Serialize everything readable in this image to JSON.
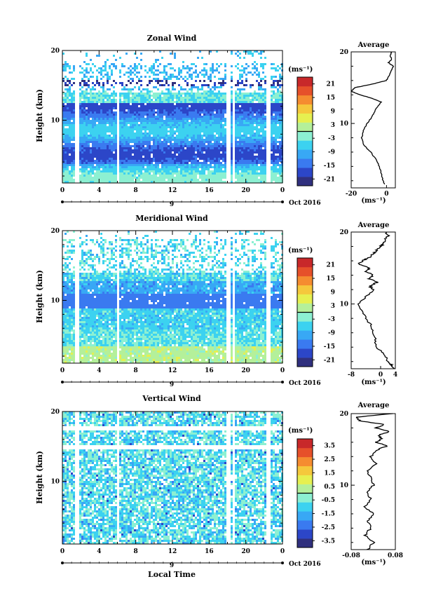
{
  "panels": [
    {
      "title": "Zonal Wind",
      "ylabel": "Height (km)",
      "ylim": [
        1,
        20
      ],
      "yticks": [
        "20",
        "10"
      ],
      "xticks": [
        "0",
        "4",
        "8",
        "12",
        "16",
        "20",
        "0"
      ],
      "date_tick": "9",
      "date_label": "Oct 2016",
      "colorbar": {
        "unit": "(ms⁻¹)",
        "ticks": [
          "21",
          "15",
          "9",
          "3",
          "-3",
          "-9",
          "-15",
          "-21"
        ],
        "range": [
          -24,
          24
        ]
      },
      "average": {
        "title": "Average",
        "xlabel": "(ms⁻¹)",
        "xticks": [
          "-20",
          "0"
        ],
        "xlim": [
          -20,
          5
        ],
        "yticks": [
          "20",
          "10"
        ],
        "profile_heights": [
          1.5,
          2,
          3,
          4,
          5,
          6,
          7,
          8,
          9,
          10,
          11,
          12,
          13,
          13.5,
          14,
          14.5,
          15,
          15.5,
          16,
          16.5,
          17,
          17.5,
          18,
          18.5,
          19,
          19.5,
          20
        ],
        "profile_values": [
          -1,
          -2,
          -3,
          -4,
          -6,
          -9,
          -13,
          -14,
          -13,
          -11,
          -8,
          -6,
          -3,
          -8,
          -15,
          -20,
          -18,
          -8,
          0,
          1,
          2,
          3,
          4,
          1,
          3,
          2,
          3
        ]
      }
    },
    {
      "title": "Meridional Wind",
      "ylabel": "Height (km)",
      "ylim": [
        1,
        20
      ],
      "yticks": [
        "20",
        "10"
      ],
      "xticks": [
        "0",
        "4",
        "8",
        "12",
        "16",
        "20",
        "0"
      ],
      "date_tick": "9",
      "date_label": "Oct 2016",
      "colorbar": {
        "unit": "(ms⁻¹)",
        "ticks": [
          "21",
          "15",
          "9",
          "3",
          "-3",
          "-9",
          "-15",
          "-21"
        ],
        "range": [
          -24,
          24
        ]
      },
      "average": {
        "title": "Average",
        "xlabel": "(ms⁻¹)",
        "xticks": [
          "-8",
          "0",
          "4"
        ],
        "xlim": [
          -8,
          4
        ],
        "yticks": [
          "20",
          "10"
        ],
        "profile_heights": [
          1,
          1.5,
          2,
          3,
          4,
          5,
          6,
          7,
          8,
          9,
          10,
          11,
          12,
          12.5,
          13,
          13.5,
          14,
          14.5,
          15,
          15.5,
          16,
          16.5,
          17,
          17.5,
          18,
          18.5,
          19,
          19.5,
          20
        ],
        "profile_values": [
          3.5,
          3,
          2,
          1,
          -1,
          -1.5,
          -2,
          -2.5,
          -4,
          -5,
          -6,
          -4,
          -2,
          -3,
          -1,
          -3,
          -2,
          -4,
          -3,
          -6,
          -5,
          -3,
          -2,
          -1,
          0,
          1,
          1,
          2,
          1.5
        ]
      }
    },
    {
      "title": "Vertical Wind",
      "ylabel": "Height (km)",
      "ylim": [
        1,
        20
      ],
      "yticks": [
        "20",
        "10"
      ],
      "xticks": [
        "0",
        "4",
        "8",
        "12",
        "16",
        "20",
        "0"
      ],
      "date_tick": "9",
      "date_label": "Oct 2016",
      "xlabel": "Local Time",
      "colorbar": {
        "unit": "(ms⁻¹)",
        "ticks": [
          "3.5",
          "2.5",
          "1.5",
          "0.5",
          "-0.5",
          "-1.5",
          "-2.5",
          "-3.5"
        ],
        "range": [
          -4,
          4
        ]
      },
      "average": {
        "title": "Average",
        "xlabel": "(ms⁻¹)",
        "xticks": [
          "-0.08",
          "0.08"
        ],
        "xlim": [
          -0.08,
          0.08
        ],
        "yticks": [
          "20",
          "10"
        ],
        "profile_heights": [
          1,
          2,
          3,
          4,
          5,
          6,
          7,
          8,
          9,
          10,
          11,
          12,
          13,
          14,
          15,
          15.5,
          16,
          16.5,
          17,
          17.5,
          18,
          18.5,
          19,
          19.5,
          20
        ],
        "profile_values": [
          -0.02,
          0.0,
          -0.03,
          -0.01,
          -0.02,
          0.0,
          -0.03,
          -0.01,
          -0.02,
          0.0,
          -0.01,
          -0.02,
          0.01,
          -0.01,
          0.02,
          0.05,
          0.01,
          0.03,
          0.02,
          0.06,
          0.01,
          0.04,
          -0.05,
          -0.06,
          0.07
        ]
      }
    }
  ],
  "colors": {
    "palette": [
      "#30307e",
      "#2c46c8",
      "#3a7af0",
      "#38a8f5",
      "#3cd2f0",
      "#8cf0d2",
      "#b4f09a",
      "#e6f050",
      "#f5c83c",
      "#f58c30",
      "#e6502a",
      "#c8282a"
    ]
  }
}
